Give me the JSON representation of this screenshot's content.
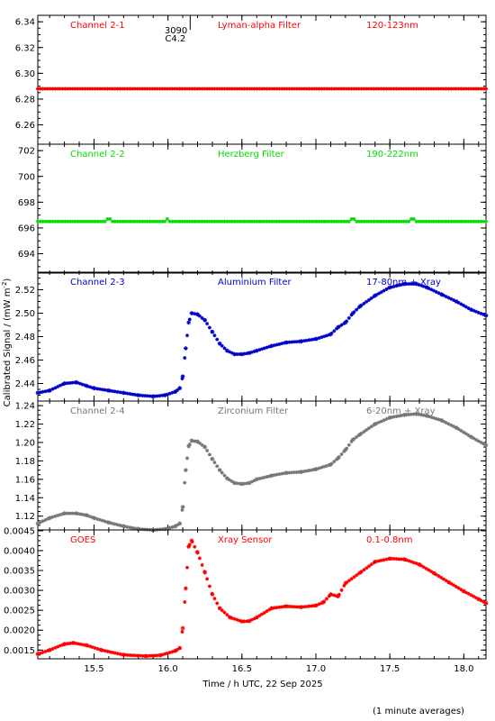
{
  "chart_data": {
    "type": "scatter",
    "xlabel": "Time / h UTC, 22 Sep 2025",
    "ylabel": "Calibrated Signal / (mW m",
    "ylabel_sup": "-2",
    "ylabel_close": ")",
    "footnote": "(1 minute averages)",
    "xlim": [
      15.12,
      18.15
    ],
    "xticks": [
      "15.5",
      "16.0",
      "16.5",
      "17.0",
      "17.5",
      "18.0"
    ],
    "annotation": {
      "line1": "3090",
      "line2": "C4.2",
      "x": 16.15
    },
    "panels": [
      {
        "name": "Channel 2-1",
        "filter": "Lyman-alpha Filter",
        "band": "120-123nm",
        "color": "#ff0000",
        "ylim": [
          6.245,
          6.345
        ],
        "yticks": [
          "6.26",
          "6.28",
          "6.30",
          "6.32",
          "6.34"
        ],
        "kind": "flat",
        "level": 6.288,
        "spikes": []
      },
      {
        "name": "Channel 2-2",
        "filter": "Herzberg Filter",
        "band": "190-222nm",
        "color": "#00dd00",
        "ylim": [
          692.5,
          702.5
        ],
        "yticks": [
          "694",
          "696",
          "698",
          "700",
          "702"
        ],
        "kind": "flat",
        "level": 696.5,
        "spikes": [
          15.6,
          16.0,
          17.25,
          17.65
        ]
      },
      {
        "name": "Channel 2-3",
        "filter": "Aluminium Filter",
        "band": "17-80nm + Xray",
        "color": "#0000cc",
        "ylim": [
          2.425,
          2.535
        ],
        "yticks": [
          "2.44",
          "2.46",
          "2.48",
          "2.50",
          "2.52"
        ],
        "kind": "curve",
        "points": [
          [
            15.12,
            2.432
          ],
          [
            15.2,
            2.434
          ],
          [
            15.3,
            2.44
          ],
          [
            15.38,
            2.441
          ],
          [
            15.45,
            2.438
          ],
          [
            15.5,
            2.436
          ],
          [
            15.6,
            2.434
          ],
          [
            15.7,
            2.432
          ],
          [
            15.8,
            2.43
          ],
          [
            15.9,
            2.429
          ],
          [
            15.98,
            2.43
          ],
          [
            16.05,
            2.433
          ],
          [
            16.08,
            2.436
          ],
          [
            16.1,
            2.446
          ],
          [
            16.12,
            2.47
          ],
          [
            16.14,
            2.492
          ],
          [
            16.16,
            2.5
          ],
          [
            16.2,
            2.499
          ],
          [
            16.25,
            2.494
          ],
          [
            16.3,
            2.484
          ],
          [
            16.35,
            2.474
          ],
          [
            16.4,
            2.468
          ],
          [
            16.45,
            2.465
          ],
          [
            16.5,
            2.465
          ],
          [
            16.55,
            2.466
          ],
          [
            16.6,
            2.468
          ],
          [
            16.7,
            2.472
          ],
          [
            16.8,
            2.475
          ],
          [
            16.9,
            2.476
          ],
          [
            17.0,
            2.478
          ],
          [
            17.1,
            2.482
          ],
          [
            17.15,
            2.488
          ],
          [
            17.2,
            2.492
          ],
          [
            17.25,
            2.5
          ],
          [
            17.3,
            2.506
          ],
          [
            17.4,
            2.515
          ],
          [
            17.5,
            2.522
          ],
          [
            17.6,
            2.525
          ],
          [
            17.68,
            2.525
          ],
          [
            17.75,
            2.522
          ],
          [
            17.85,
            2.516
          ],
          [
            17.95,
            2.51
          ],
          [
            18.05,
            2.503
          ],
          [
            18.15,
            2.498
          ]
        ]
      },
      {
        "name": "Channel 2-4",
        "filter": "Zirconium Filter",
        "band": "6-20nm + Xray",
        "color": "#777777",
        "ylim": [
          1.105,
          1.245
        ],
        "yticks": [
          "1.12",
          "1.14",
          "1.16",
          "1.18",
          "1.20",
          "1.22",
          "1.24"
        ],
        "kind": "curve",
        "points": [
          [
            15.12,
            1.112
          ],
          [
            15.2,
            1.118
          ],
          [
            15.3,
            1.123
          ],
          [
            15.38,
            1.123
          ],
          [
            15.45,
            1.121
          ],
          [
            15.5,
            1.118
          ],
          [
            15.6,
            1.113
          ],
          [
            15.7,
            1.109
          ],
          [
            15.8,
            1.106
          ],
          [
            15.9,
            1.105
          ],
          [
            15.98,
            1.106
          ],
          [
            16.05,
            1.109
          ],
          [
            16.08,
            1.112
          ],
          [
            16.1,
            1.13
          ],
          [
            16.12,
            1.17
          ],
          [
            16.14,
            1.196
          ],
          [
            16.16,
            1.202
          ],
          [
            16.2,
            1.201
          ],
          [
            16.25,
            1.195
          ],
          [
            16.3,
            1.182
          ],
          [
            16.35,
            1.17
          ],
          [
            16.4,
            1.161
          ],
          [
            16.45,
            1.156
          ],
          [
            16.5,
            1.155
          ],
          [
            16.55,
            1.156
          ],
          [
            16.6,
            1.16
          ],
          [
            16.7,
            1.164
          ],
          [
            16.8,
            1.167
          ],
          [
            16.9,
            1.168
          ],
          [
            17.0,
            1.171
          ],
          [
            17.1,
            1.176
          ],
          [
            17.15,
            1.183
          ],
          [
            17.2,
            1.192
          ],
          [
            17.25,
            1.203
          ],
          [
            17.3,
            1.209
          ],
          [
            17.4,
            1.22
          ],
          [
            17.5,
            1.227
          ],
          [
            17.6,
            1.23
          ],
          [
            17.68,
            1.231
          ],
          [
            17.75,
            1.229
          ],
          [
            17.85,
            1.224
          ],
          [
            17.95,
            1.216
          ],
          [
            18.05,
            1.206
          ],
          [
            18.15,
            1.197
          ]
        ]
      },
      {
        "name": "GOES",
        "filter": "Xray Sensor",
        "band": "0.1-0.8nm",
        "color": "#ff0000",
        "ylim": [
          0.00128,
          0.00452
        ],
        "yticks": [
          "0.0015",
          "0.0020",
          "0.0025",
          "0.0030",
          "0.0035",
          "0.0040",
          "0.0045"
        ],
        "kind": "curve",
        "points": [
          [
            15.12,
            0.0014
          ],
          [
            15.2,
            0.0015
          ],
          [
            15.3,
            0.00165
          ],
          [
            15.36,
            0.00168
          ],
          [
            15.45,
            0.00162
          ],
          [
            15.55,
            0.0015
          ],
          [
            15.7,
            0.00138
          ],
          [
            15.85,
            0.00135
          ],
          [
            15.95,
            0.00137
          ],
          [
            16.05,
            0.00148
          ],
          [
            16.08,
            0.00155
          ],
          [
            16.1,
            0.00205
          ],
          [
            16.12,
            0.00305
          ],
          [
            16.14,
            0.0041
          ],
          [
            16.16,
            0.00425
          ],
          [
            16.2,
            0.00395
          ],
          [
            16.25,
            0.00345
          ],
          [
            16.3,
            0.0029
          ],
          [
            16.35,
            0.00255
          ],
          [
            16.42,
            0.00232
          ],
          [
            16.5,
            0.00222
          ],
          [
            16.55,
            0.00223
          ],
          [
            16.6,
            0.00232
          ],
          [
            16.7,
            0.00255
          ],
          [
            16.8,
            0.0026
          ],
          [
            16.9,
            0.00258
          ],
          [
            17.0,
            0.00262
          ],
          [
            17.05,
            0.0027
          ],
          [
            17.1,
            0.0029
          ],
          [
            17.15,
            0.00285
          ],
          [
            17.2,
            0.00318
          ],
          [
            17.3,
            0.00345
          ],
          [
            17.4,
            0.00372
          ],
          [
            17.5,
            0.0038
          ],
          [
            17.6,
            0.00378
          ],
          [
            17.7,
            0.00365
          ],
          [
            17.8,
            0.00343
          ],
          [
            17.9,
            0.0032
          ],
          [
            18.0,
            0.00298
          ],
          [
            18.1,
            0.00278
          ],
          [
            18.15,
            0.00268
          ]
        ]
      }
    ]
  }
}
